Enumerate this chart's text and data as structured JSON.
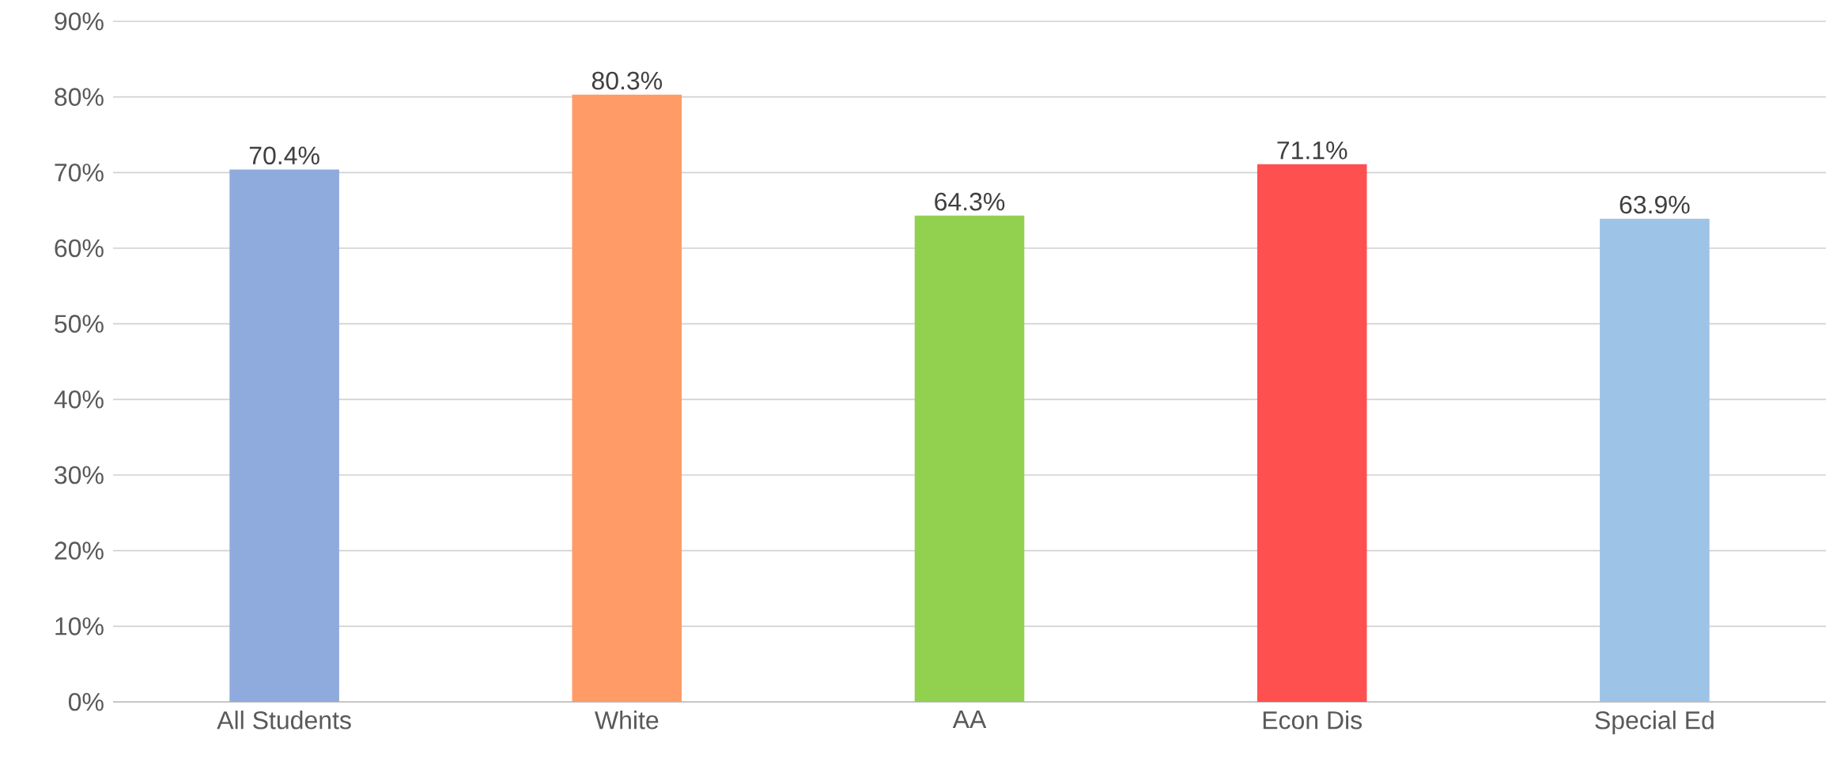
{
  "chart_data": {
    "type": "bar",
    "categories": [
      "All Students",
      "White",
      "AA",
      "Econ Dis",
      "Special Ed"
    ],
    "values": [
      70.4,
      80.3,
      64.3,
      71.1,
      63.9
    ],
    "value_labels": [
      "70.4%",
      "80.3%",
      "64.3%",
      "71.1%",
      "63.9%"
    ],
    "colors": [
      "#8faadc",
      "#ff9b66",
      "#92d050",
      "#ff5050",
      "#9dc3e6"
    ],
    "ylim": [
      0,
      90
    ],
    "yticks": [
      {
        "value": 0,
        "label": "0%"
      },
      {
        "value": 10,
        "label": "10%"
      },
      {
        "value": 20,
        "label": "20%"
      },
      {
        "value": 30,
        "label": "30%"
      },
      {
        "value": 40,
        "label": "40%"
      },
      {
        "value": 50,
        "label": "50%"
      },
      {
        "value": 60,
        "label": "60%"
      },
      {
        "value": 70,
        "label": "70%"
      },
      {
        "value": 80,
        "label": "80%"
      },
      {
        "value": 90,
        "label": "90%"
      }
    ],
    "grid": "y"
  }
}
